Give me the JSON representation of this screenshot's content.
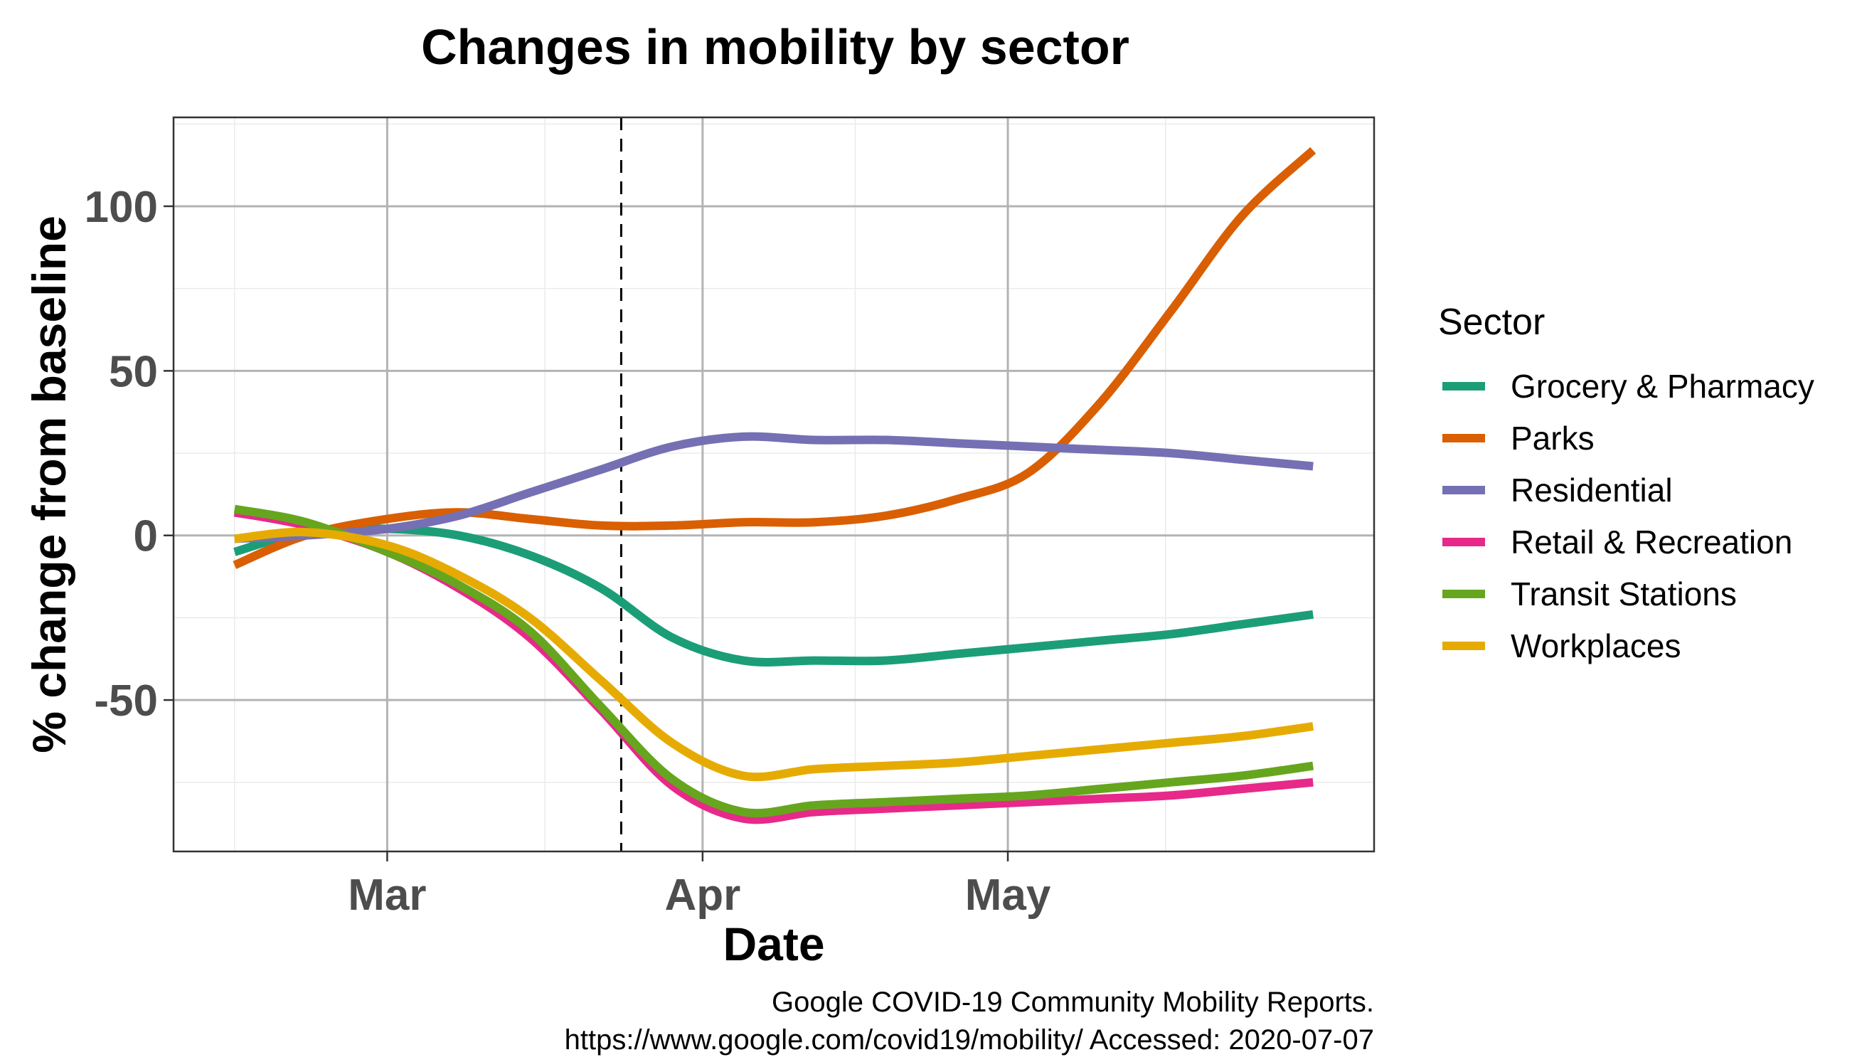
{
  "chart_data": {
    "type": "line",
    "title": "Changes in mobility by sector",
    "xlabel": "Date",
    "ylabel": "% change from baseline",
    "x_tick_labels": [
      "Mar",
      "Apr",
      "May"
    ],
    "x_tick_dates": [
      "2020-03-01",
      "2020-04-01",
      "2020-05-01"
    ],
    "y_ticks": [
      -50,
      0,
      50,
      100
    ],
    "xlim": [
      "2020-02-09",
      "2020-06-06"
    ],
    "ylim": [
      -96,
      127
    ],
    "grid": true,
    "vline": {
      "x": "2020-03-24",
      "style": "dashed"
    },
    "legend": {
      "title": "Sector",
      "position": "right"
    },
    "caption": [
      "Google COVID-19 Community Mobility Reports.",
      "https://www.google.com/covid19/mobility/ Accessed: 2020-07-07"
    ],
    "x": [
      "2020-02-15",
      "2020-02-22",
      "2020-03-01",
      "2020-03-08",
      "2020-03-15",
      "2020-03-22",
      "2020-03-29",
      "2020-04-05",
      "2020-04-12",
      "2020-04-19",
      "2020-04-26",
      "2020-05-03",
      "2020-05-10",
      "2020-05-17",
      "2020-05-24",
      "2020-05-31"
    ],
    "series": [
      {
        "name": "Grocery & Pharmacy",
        "color": "#1b9e77",
        "values": [
          -5,
          1,
          2,
          0,
          -6,
          -16,
          -31,
          -38,
          -38,
          -38,
          -36,
          -34,
          -32,
          -30,
          -27,
          -24
        ]
      },
      {
        "name": "Parks",
        "color": "#d95f02",
        "values": [
          -9,
          0,
          5,
          7,
          5,
          3,
          3,
          4,
          4,
          6,
          11,
          19,
          40,
          68,
          97,
          117
        ]
      },
      {
        "name": "Residential",
        "color": "#7570b3",
        "values": [
          -1,
          0,
          2,
          6,
          13,
          20,
          27,
          30,
          29,
          29,
          28,
          27,
          26,
          25,
          23,
          21
        ]
      },
      {
        "name": "Retail & Recreation",
        "color": "#e7298a",
        "values": [
          7,
          3,
          -5,
          -16,
          -31,
          -53,
          -76,
          -86,
          -84,
          -83,
          -82,
          -81,
          -80,
          -79,
          -77,
          -75
        ]
      },
      {
        "name": "Transit Stations",
        "color": "#66a61e",
        "values": [
          8,
          4,
          -5,
          -15,
          -29,
          -52,
          -74,
          -84,
          -82,
          -81,
          -80,
          -79,
          -77,
          -75,
          -73,
          -70
        ]
      },
      {
        "name": "Workplaces",
        "color": "#e6ab02",
        "values": [
          -1,
          1,
          -3,
          -12,
          -25,
          -44,
          -63,
          -73,
          -71,
          -70,
          -69,
          -67,
          -65,
          -63,
          -61,
          -58
        ]
      }
    ]
  }
}
